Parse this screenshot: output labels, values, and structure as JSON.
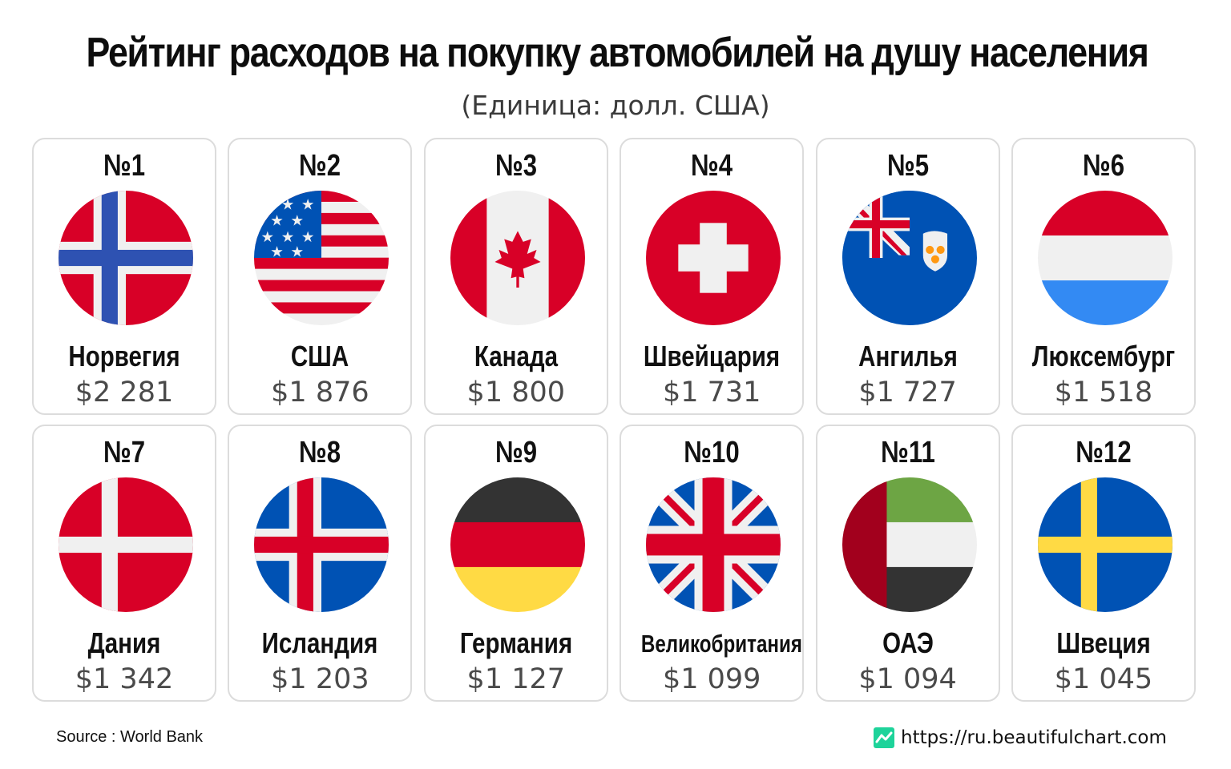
{
  "header": {
    "title": "Рейтинг расходов на покупку автомобилей на душу населения",
    "subtitle": "(Единица: долл. США)"
  },
  "chart_data": {
    "type": "table",
    "title": "Рейтинг расходов на покупку автомобилей на душу населения",
    "unit": "(Единица: долл. США)",
    "columns": [
      "rank",
      "country",
      "value"
    ],
    "rows": [
      {
        "rank": "№1",
        "country": "Норвегия",
        "value": 2281,
        "label": "$2 281",
        "flag": "norway-flag-icon"
      },
      {
        "rank": "№2",
        "country": "США",
        "value": 1876,
        "label": "$1 876",
        "flag": "usa-flag-icon"
      },
      {
        "rank": "№3",
        "country": "Канада",
        "value": 1800,
        "label": "$1 800",
        "flag": "canada-flag-icon"
      },
      {
        "rank": "№4",
        "country": "Швейцария",
        "value": 1731,
        "label": "$1 731",
        "flag": "switzerland-flag-icon"
      },
      {
        "rank": "№5",
        "country": "Ангилья",
        "value": 1727,
        "label": "$1 727",
        "flag": "anguilla-flag-icon"
      },
      {
        "rank": "№6",
        "country": "Люксембург",
        "value": 1518,
        "label": "$1 518",
        "flag": "luxembourg-flag-icon"
      },
      {
        "rank": "№7",
        "country": "Дания",
        "value": 1342,
        "label": "$1 342",
        "flag": "denmark-flag-icon"
      },
      {
        "rank": "№8",
        "country": "Исландия",
        "value": 1203,
        "label": "$1 203",
        "flag": "iceland-flag-icon"
      },
      {
        "rank": "№9",
        "country": "Германия",
        "value": 1127,
        "label": "$1 127",
        "flag": "germany-flag-icon"
      },
      {
        "rank": "№10",
        "country": "Великобритания",
        "value": 1099,
        "label": "$1 099",
        "flag": "uk-flag-icon"
      },
      {
        "rank": "№11",
        "country": "ОАЭ",
        "value": 1094,
        "label": "$1 094",
        "flag": "uae-flag-icon"
      },
      {
        "rank": "№12",
        "country": "Швеция",
        "value": 1045,
        "label": "$1 045",
        "flag": "sweden-flag-icon"
      }
    ]
  },
  "footer": {
    "source": "Source : World Bank",
    "site": "https://ru.beautifulchart.com",
    "logo_color": "#1ed39a"
  }
}
